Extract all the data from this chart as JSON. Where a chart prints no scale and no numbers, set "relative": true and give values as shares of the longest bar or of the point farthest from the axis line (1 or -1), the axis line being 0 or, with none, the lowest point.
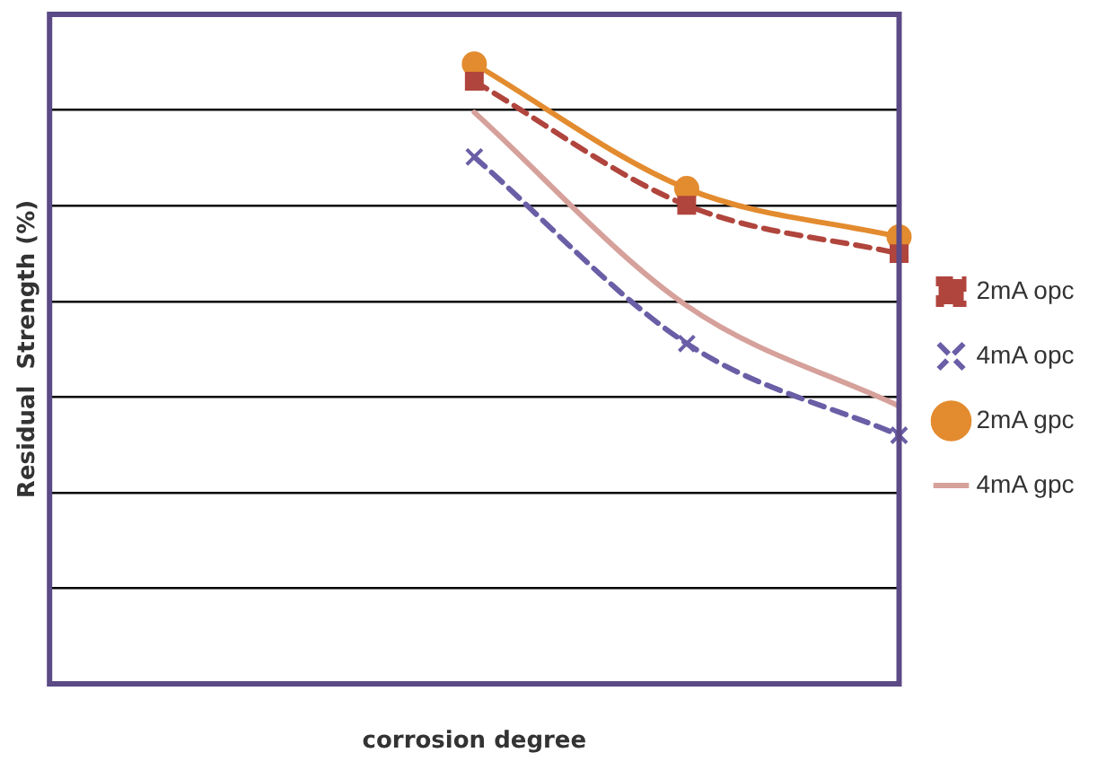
{
  "chart_data": {
    "type": "line",
    "relative": true,
    "xlabel": "corrosion degree",
    "ylabel": "Residual  Strength (%)",
    "categories": [
      null,
      null,
      null,
      null,
      null
    ],
    "grid": "y",
    "legend": "right",
    "series": [
      {
        "name": "2mA opc",
        "color": "#b0453d",
        "values": [
          null,
          null,
          0.972,
          0.772,
          0.694
        ],
        "marker": "square",
        "line_style": "dashed"
      },
      {
        "name": "4mA opc",
        "color": "#6a5ea6",
        "values": [
          null,
          null,
          0.85,
          0.549,
          0.401
        ],
        "marker": "cross",
        "line_style": "dashed"
      },
      {
        "name": "2mA gpc",
        "color": "#e38b2f",
        "values": [
          null,
          null,
          1,
          0.799,
          0.721
        ],
        "marker": "circle",
        "line_style": "solid"
      },
      {
        "name": "4mA gpc",
        "color": "#d6a19b",
        "values": [
          null,
          null,
          0.922,
          0.61,
          0.448
        ],
        "marker": "none",
        "line_style": "solid"
      }
    ]
  }
}
